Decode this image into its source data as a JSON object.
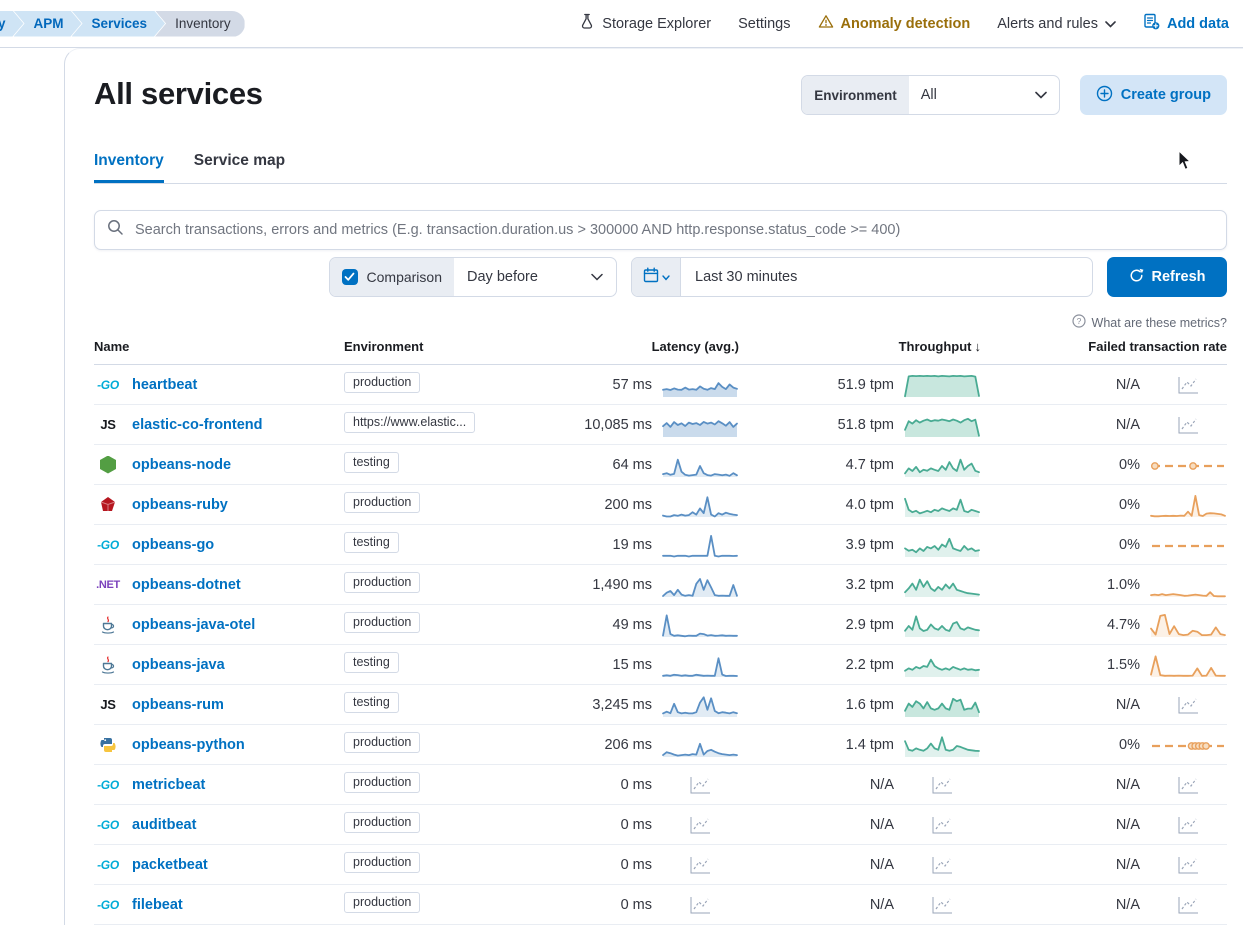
{
  "topbar": {
    "breadcrumbs": [
      {
        "label": "y",
        "style": "first"
      },
      {
        "label": "APM",
        "style": "link"
      },
      {
        "label": "Services",
        "style": "link"
      },
      {
        "label": "Inventory",
        "style": "current"
      }
    ],
    "storage_explorer": "Storage Explorer",
    "settings": "Settings",
    "anomaly_detection": "Anomaly detection",
    "alerts_and_rules": "Alerts and rules",
    "add_data": "Add data"
  },
  "header": {
    "title": "All services",
    "environment_label": "Environment",
    "environment_value": "All",
    "create_group": "Create group"
  },
  "tabs": [
    {
      "label": "Inventory",
      "active": true
    },
    {
      "label": "Service map",
      "active": false
    }
  ],
  "search": {
    "placeholder": "Search transactions, errors and metrics (E.g. transaction.duration.us > 300000 AND http.response.status_code >= 400)",
    "value": ""
  },
  "controls": {
    "comparison_label": "Comparison",
    "comparison_checked": true,
    "comparison_select": "Day before",
    "time_range": "Last 30 minutes",
    "refresh": "Refresh"
  },
  "metrics_help": "What are these metrics?",
  "colors": {
    "link_blue": "#0071c2",
    "warn_amber": "#9a6f0b",
    "latency_line": "#5a8fc4",
    "latency_fill": "#5a8fc4",
    "throughput_line": "#49ab93",
    "throughput_fill": "#54b399",
    "failed_line": "#e8a05c",
    "failed_fill": "#eeb477",
    "empty_icon": "#9aa5b8"
  },
  "icon_defs": {
    "go": {
      "kind": "text",
      "text": "-GO",
      "color": "#00acd7",
      "size": 12,
      "italic": true
    },
    "js": {
      "kind": "text",
      "text": "JS",
      "color": "#16181d",
      "size": 13,
      "italic": false
    },
    "dotnet": {
      "kind": "text",
      "text": ".NET",
      "color": "#7b42bc",
      "size": 11,
      "italic": false
    },
    "node": {
      "kind": "hex",
      "color": "#539e43"
    },
    "ruby": {
      "kind": "diamond",
      "color": "#b6161f"
    },
    "java": {
      "kind": "cup",
      "color": "#4e7896",
      "accent": "#e62e2e"
    },
    "python": {
      "kind": "python",
      "colors": [
        "#3871a1",
        "#f7c53f"
      ]
    }
  },
  "table": {
    "columns": [
      "Name",
      "Environment",
      "Latency (avg.)",
      "Throughput",
      "Failed transaction rate"
    ],
    "sorted_column": "Throughput",
    "sort_indicator": "↓",
    "rows": [
      {
        "name": "heartbeat",
        "icon": "go",
        "env": "production",
        "latency": "57 ms",
        "throughput": "51.9 tpm",
        "failed": "N/A",
        "lat": {
          "pts": [
            30,
            33,
            29,
            36,
            31,
            30,
            39,
            31,
            33,
            30,
            44,
            34,
            30,
            37,
            33,
            58,
            42,
            33,
            52,
            39,
            34
          ],
          "fill": 2
        },
        "thr": {
          "pts": [
            3,
            86,
            88,
            87,
            88,
            87,
            88,
            87,
            88,
            86,
            88,
            87,
            86,
            88,
            87,
            88,
            86,
            87,
            88,
            85,
            4
          ],
          "fill": 2
        },
        "fail": {
          "type": "empty"
        }
      },
      {
        "name": "elastic-co-frontend",
        "icon": "js",
        "env": "https://www.elastic...",
        "latency": "10,085 ms",
        "throughput": "51.8 tpm",
        "failed": "N/A",
        "lat": {
          "pts": [
            45,
            58,
            42,
            62,
            50,
            57,
            46,
            60,
            54,
            58,
            50,
            63,
            56,
            60,
            52,
            66,
            57,
            47,
            62,
            42,
            56
          ],
          "fill": 2
        },
        "thr": {
          "pts": [
            30,
            66,
            56,
            70,
            60,
            68,
            73,
            66,
            70,
            68,
            73,
            70,
            66,
            73,
            68,
            60,
            70,
            76,
            66,
            72,
            5
          ],
          "fill": 2
        },
        "fail": {
          "type": "empty"
        }
      },
      {
        "name": "opbeans-node",
        "icon": "node",
        "env": "testing",
        "latency": "64 ms",
        "throughput": "4.7 tpm",
        "failed": "0%",
        "lat": {
          "pts": [
            12,
            16,
            9,
            13,
            72,
            22,
            9,
            6,
            8,
            10,
            46,
            16,
            8,
            6,
            12,
            10,
            7,
            10,
            5,
            16,
            7
          ],
          "fill": 1
        },
        "thr": {
          "pts": [
            15,
            36,
            25,
            42,
            20,
            30,
            26,
            36,
            30,
            25,
            46,
            30,
            62,
            36,
            25,
            72,
            30,
            46,
            56,
            26,
            20
          ],
          "fill": 1
        },
        "fail": {
          "type": "dash",
          "circles": [
            4,
            57
          ]
        }
      },
      {
        "name": "opbeans-ruby",
        "icon": "ruby",
        "env": "production",
        "latency": "200 ms",
        "throughput": "4.0 tpm",
        "failed": "0%",
        "lat": {
          "pts": [
            6,
            2,
            2,
            8,
            5,
            10,
            6,
            8,
            20,
            10,
            36,
            16,
            82,
            10,
            2,
            16,
            10,
            18,
            13,
            10,
            8
          ],
          "fill": 1
        },
        "thr": {
          "pts": [
            76,
            30,
            20,
            26,
            15,
            20,
            26,
            20,
            30,
            25,
            36,
            30,
            25,
            36,
            30,
            72,
            25,
            20,
            30,
            25,
            20
          ],
          "fill": 1
        },
        "fail": {
          "pts": [
            5,
            3,
            3,
            4,
            5,
            4,
            5,
            4,
            6,
            5,
            22,
            5,
            88,
            8,
            4,
            14,
            16,
            15,
            13,
            11,
            5
          ],
          "fill": 1
        }
      },
      {
        "name": "opbeans-go",
        "icon": "go",
        "env": "testing",
        "latency": "19 ms",
        "throughput": "3.9 tpm",
        "failed": "0%",
        "lat": {
          "pts": [
            5,
            5,
            5,
            2,
            5,
            5,
            5,
            2,
            5,
            5,
            5,
            5,
            5,
            88,
            5,
            2,
            5,
            5,
            5,
            4,
            5
          ],
          "fill": 0
        },
        "thr": {
          "pts": [
            36,
            26,
            30,
            20,
            36,
            25,
            42,
            36,
            46,
            30,
            52,
            42,
            76,
            36,
            30,
            25,
            46,
            30,
            36,
            25,
            28
          ],
          "fill": 1
        },
        "fail": {
          "type": "dash",
          "circles": []
        }
      },
      {
        "name": "opbeans-dotnet",
        "icon": "dotnet",
        "env": "production",
        "latency": "1,490 ms",
        "throughput": "3.2 tpm",
        "failed": "1.0%",
        "lat": {
          "pts": [
            4,
            18,
            25,
            8,
            30,
            10,
            5,
            8,
            5,
            55,
            75,
            30,
            70,
            40,
            8,
            5,
            6,
            5,
            5,
            50,
            5
          ],
          "fill": 1
        },
        "thr": {
          "pts": [
            20,
            36,
            56,
            30,
            72,
            42,
            66,
            36,
            25,
            42,
            30,
            52,
            36,
            56,
            30,
            25,
            20,
            16,
            14,
            12,
            10
          ],
          "fill": 1
        },
        "fail": {
          "pts": [
            8,
            10,
            8,
            12,
            8,
            10,
            12,
            10,
            8,
            5,
            6,
            8,
            10,
            8,
            6,
            5,
            20,
            4,
            3,
            3,
            3
          ],
          "fill": 1
        }
      },
      {
        "name": "opbeans-java-otel",
        "icon": "java",
        "env": "production",
        "latency": "49 ms",
        "throughput": "2.9 tpm",
        "failed": "4.7%",
        "lat": {
          "pts": [
            6,
            90,
            12,
            5,
            7,
            5,
            3,
            6,
            5,
            5,
            14,
            12,
            6,
            8,
            5,
            6,
            7,
            5,
            6,
            5,
            5
          ],
          "fill": 1
        },
        "thr": {
          "pts": [
            26,
            46,
            30,
            86,
            36,
            25,
            30,
            52,
            36,
            30,
            46,
            30,
            25,
            56,
            62,
            36,
            30,
            40,
            35,
            30,
            28
          ],
          "fill": 1
        },
        "fail": {
          "pts": [
            35,
            10,
            88,
            92,
            12,
            45,
            12,
            8,
            10,
            26,
            22,
            8,
            8,
            10,
            40,
            12,
            8
          ],
          "fill": 1
        }
      },
      {
        "name": "opbeans-java",
        "icon": "java",
        "env": "testing",
        "latency": "15 ms",
        "throughput": "2.2 tpm",
        "failed": "1.5%",
        "lat": {
          "pts": [
            5,
            7,
            5,
            9,
            8,
            5,
            7,
            5,
            5,
            9,
            7,
            5,
            6,
            5,
            5,
            78,
            10,
            4,
            5,
            5,
            4
          ],
          "fill": 1
        },
        "thr": {
          "pts": [
            26,
            36,
            30,
            42,
            36,
            46,
            42,
            72,
            46,
            36,
            30,
            36,
            30,
            42,
            36,
            30,
            36,
            30,
            32,
            28,
            30
          ],
          "fill": 1
        },
        "fail": {
          "pts": [
            10,
            86,
            8,
            5,
            6,
            5,
            6,
            5,
            5,
            6,
            36,
            5,
            6,
            38,
            6,
            5,
            5
          ],
          "fill": 1
        }
      },
      {
        "name": "opbeans-rum",
        "icon": "js",
        "env": "testing",
        "latency": "3,245 ms",
        "throughput": "1.6 tpm",
        "failed": "N/A",
        "lat": {
          "pts": [
            15,
            22,
            16,
            55,
            20,
            15,
            18,
            15,
            15,
            20,
            60,
            82,
            30,
            78,
            25,
            16,
            20,
            18,
            15,
            20,
            16
          ],
          "fill": 1
        },
        "thr": {
          "pts": [
            26,
            56,
            42,
            66,
            56,
            36,
            62,
            36,
            30,
            36,
            56,
            36,
            30,
            76,
            66,
            72,
            30,
            35,
            35,
            60,
            20
          ],
          "fill": 2
        },
        "fail": {
          "type": "empty"
        }
      },
      {
        "name": "opbeans-python",
        "icon": "python",
        "env": "production",
        "latency": "206 ms",
        "throughput": "1.4 tpm",
        "failed": "0%",
        "lat": {
          "pts": [
            8,
            20,
            16,
            10,
            6,
            8,
            10,
            8,
            12,
            10,
            55,
            10,
            25,
            30,
            22,
            16,
            12,
            10,
            8,
            10,
            8
          ],
          "fill": 1
        },
        "thr": {
          "pts": [
            66,
            30,
            26,
            36,
            30,
            26,
            36,
            56,
            36,
            30,
            82,
            30,
            26,
            30,
            46,
            42,
            36,
            30,
            28,
            26,
            25
          ],
          "fill": 1
        },
        "fail": {
          "type": "dash",
          "circles": [
            55,
            60,
            65,
            70,
            75
          ]
        }
      },
      {
        "name": "metricbeat",
        "icon": "go",
        "env": "production",
        "latency": "0 ms",
        "throughput": "N/A",
        "failed": "N/A",
        "lat": {
          "type": "empty"
        },
        "thr": {
          "type": "empty"
        },
        "fail": {
          "type": "empty"
        }
      },
      {
        "name": "auditbeat",
        "icon": "go",
        "env": "production",
        "latency": "0 ms",
        "throughput": "N/A",
        "failed": "N/A",
        "lat": {
          "type": "empty"
        },
        "thr": {
          "type": "empty"
        },
        "fail": {
          "type": "empty"
        }
      },
      {
        "name": "packetbeat",
        "icon": "go",
        "env": "production",
        "latency": "0 ms",
        "throughput": "N/A",
        "failed": "N/A",
        "lat": {
          "type": "empty"
        },
        "thr": {
          "type": "empty"
        },
        "fail": {
          "type": "empty"
        }
      },
      {
        "name": "filebeat",
        "icon": "go",
        "env": "production",
        "latency": "0 ms",
        "throughput": "N/A",
        "failed": "N/A",
        "lat": {
          "type": "empty"
        },
        "thr": {
          "type": "empty"
        },
        "fail": {
          "type": "empty"
        }
      }
    ]
  }
}
